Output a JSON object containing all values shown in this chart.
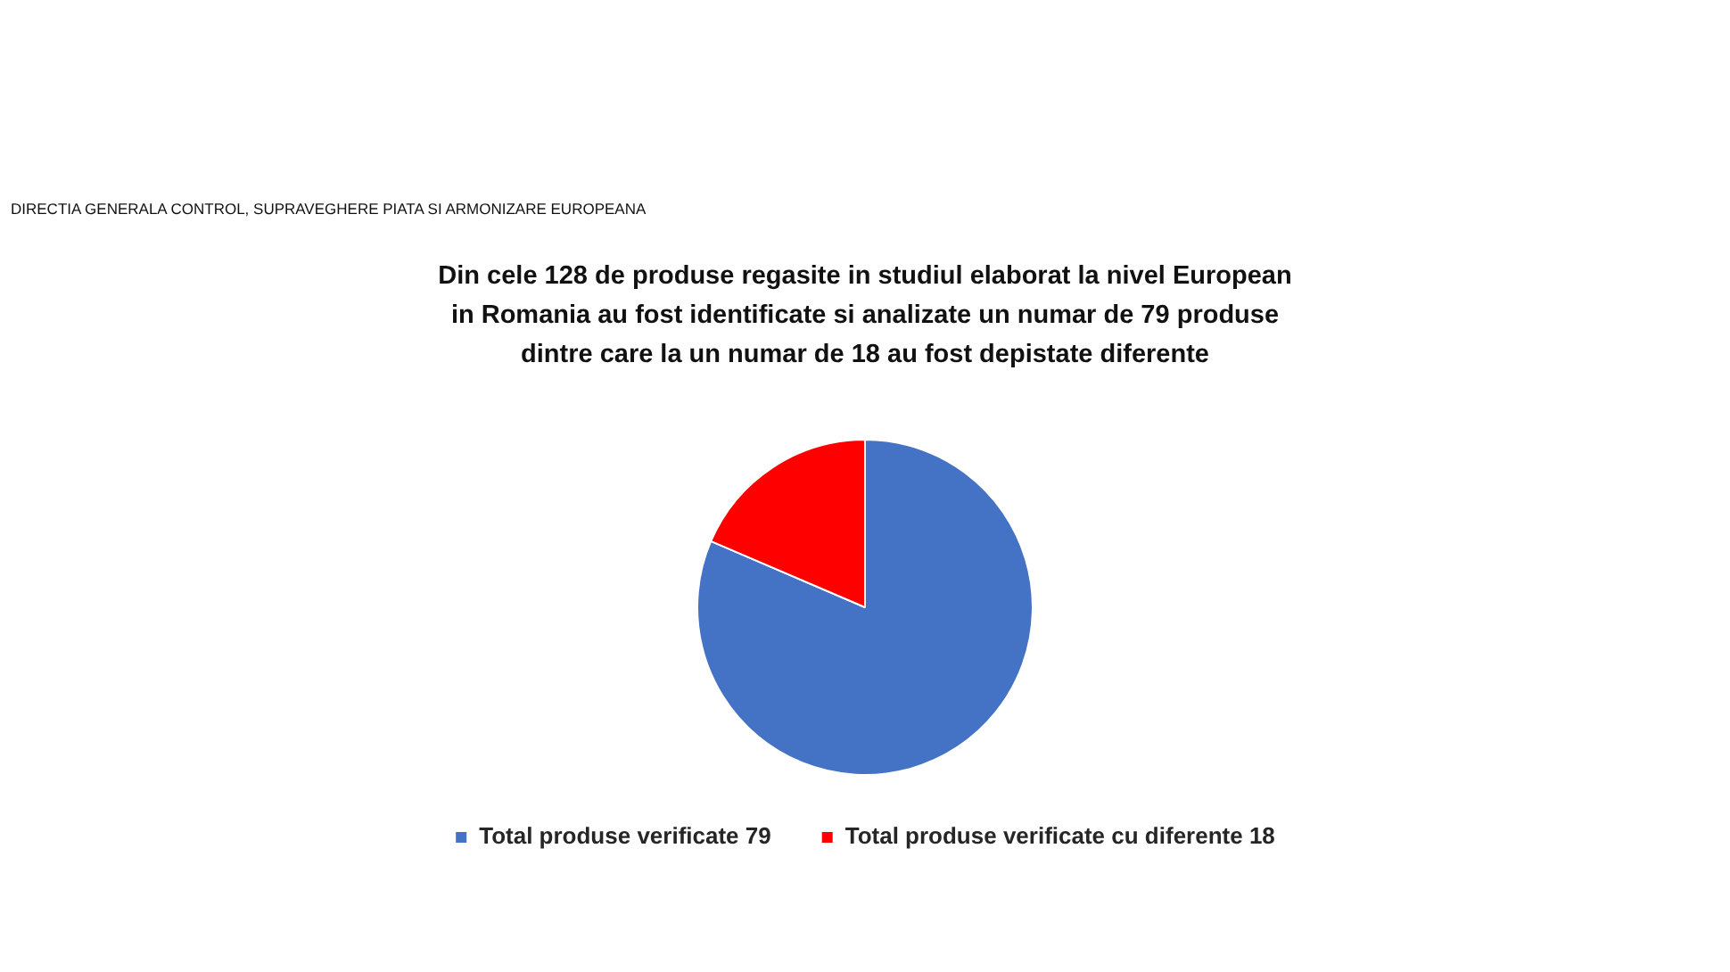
{
  "chart_data": {
    "type": "pie",
    "title": "Din cele 128 de produse regasite in studiul elaborat la nivel European in Romania au fost identificate si analizate un numar de 79 produse dintre care la un numar de 18 au fost depistate diferente",
    "annotations": [
      "DIRECTIA GENERALA CONTROL, SUPRAVEGHERE PIATA SI ARMONIZARE EUROPEANA"
    ],
    "categories": [
      "Total produse verificate 79",
      "Total produse verificate cu diferente 18"
    ],
    "values": [
      79,
      18
    ],
    "colors": [
      "#4472c4",
      "#ff0000"
    ],
    "legend": "bottom"
  }
}
